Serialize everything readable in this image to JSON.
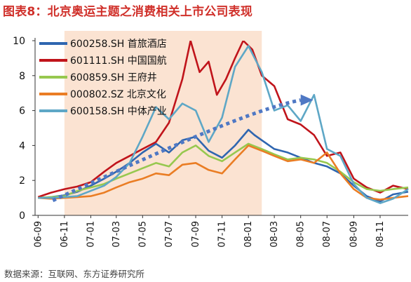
{
  "title": "图表8：北京奥运主题之消费相关上市公司表现",
  "source": "数据来源：互联网、东方证券研究所",
  "colors": {
    "title": "#d0302a",
    "highlight": "#fbe3d2",
    "trend_arrow": "#4f78c4"
  },
  "chart_data": {
    "type": "line",
    "xlabel": "",
    "ylabel": "",
    "ylim": [
      0,
      10
    ],
    "yticks": [
      0,
      2,
      4,
      6,
      8,
      10
    ],
    "x_range": [
      "2006-08-25",
      "2009-01-05"
    ],
    "xticks": [
      {
        "label": "06-09",
        "date": "2006-09-01"
      },
      {
        "label": "06-11",
        "date": "2006-11-01"
      },
      {
        "label": "07-01",
        "date": "2007-01-01"
      },
      {
        "label": "07-03",
        "date": "2007-03-01"
      },
      {
        "label": "07-05",
        "date": "2007-05-01"
      },
      {
        "label": "07-07",
        "date": "2007-07-01"
      },
      {
        "label": "07-09",
        "date": "2007-09-01"
      },
      {
        "label": "07-11",
        "date": "2007-11-01"
      },
      {
        "label": "08-01",
        "date": "2008-01-01"
      },
      {
        "label": "08-03",
        "date": "2008-03-01"
      },
      {
        "label": "08-05",
        "date": "2008-05-01"
      },
      {
        "label": "08-07",
        "date": "2008-07-01"
      },
      {
        "label": "08-09",
        "date": "2008-09-01"
      },
      {
        "label": "08-11",
        "date": "2008-11-01"
      }
    ],
    "highlight_range": [
      "2006-11-01",
      "2008-02-01"
    ],
    "trend_arrow": {
      "points": [
        [
          "2006-10-05",
          0.85
        ],
        [
          "2007-07-01",
          3.9
        ],
        [
          "2008-01-15",
          6.1
        ],
        [
          "2008-05-01",
          6.6
        ]
      ]
    },
    "legend_position": "top-left",
    "grid": false,
    "series": [
      {
        "name": "600258.SH 首旅酒店",
        "color": "#2f66b0",
        "points": [
          [
            "2006-09-01",
            1.0
          ],
          [
            "2006-10-01",
            1.05
          ],
          [
            "2006-11-01",
            1.15
          ],
          [
            "2006-12-01",
            1.35
          ],
          [
            "2007-01-01",
            1.7
          ],
          [
            "2007-02-01",
            2.1
          ],
          [
            "2007-03-01",
            2.5
          ],
          [
            "2007-04-01",
            3.0
          ],
          [
            "2007-05-01",
            3.6
          ],
          [
            "2007-06-01",
            4.1
          ],
          [
            "2007-07-01",
            3.6
          ],
          [
            "2007-08-01",
            4.3
          ],
          [
            "2007-09-01",
            4.5
          ],
          [
            "2007-10-01",
            3.7
          ],
          [
            "2007-11-01",
            3.3
          ],
          [
            "2007-12-01",
            4.0
          ],
          [
            "2008-01-01",
            4.9
          ],
          [
            "2008-01-15",
            4.6
          ],
          [
            "2008-02-01",
            4.3
          ],
          [
            "2008-03-01",
            3.8
          ],
          [
            "2008-04-01",
            3.6
          ],
          [
            "2008-05-01",
            3.3
          ],
          [
            "2008-06-01",
            3.0
          ],
          [
            "2008-07-01",
            2.8
          ],
          [
            "2008-08-01",
            2.4
          ],
          [
            "2008-09-01",
            1.7
          ],
          [
            "2008-10-01",
            1.1
          ],
          [
            "2008-11-01",
            0.8
          ],
          [
            "2008-12-01",
            1.2
          ],
          [
            "2009-01-05",
            1.35
          ]
        ]
      },
      {
        "name": "601111.SH 中国国航",
        "color": "#c0141b",
        "points": [
          [
            "2006-09-01",
            1.05
          ],
          [
            "2006-10-01",
            1.3
          ],
          [
            "2006-11-01",
            1.5
          ],
          [
            "2006-12-01",
            1.65
          ],
          [
            "2007-01-01",
            1.9
          ],
          [
            "2007-02-01",
            2.5
          ],
          [
            "2007-03-01",
            3.0
          ],
          [
            "2007-04-01",
            3.4
          ],
          [
            "2007-05-01",
            3.8
          ],
          [
            "2007-06-01",
            4.2
          ],
          [
            "2007-07-01",
            5.3
          ],
          [
            "2007-08-01",
            7.8
          ],
          [
            "2007-08-20",
            10.0
          ],
          [
            "2007-09-10",
            8.2
          ],
          [
            "2007-10-01",
            8.8
          ],
          [
            "2007-10-20",
            6.9
          ],
          [
            "2007-11-10",
            7.8
          ],
          [
            "2007-12-01",
            9.0
          ],
          [
            "2007-12-20",
            10.0
          ],
          [
            "2008-01-10",
            9.5
          ],
          [
            "2008-02-01",
            8.0
          ],
          [
            "2008-03-01",
            7.4
          ],
          [
            "2008-04-01",
            5.5
          ],
          [
            "2008-05-01",
            5.2
          ],
          [
            "2008-06-01",
            4.6
          ],
          [
            "2008-07-01",
            3.4
          ],
          [
            "2008-08-01",
            3.6
          ],
          [
            "2008-09-01",
            2.1
          ],
          [
            "2008-10-01",
            1.6
          ],
          [
            "2008-11-01",
            1.3
          ],
          [
            "2008-12-01",
            1.7
          ],
          [
            "2009-01-05",
            1.5
          ]
        ]
      },
      {
        "name": "600859.SH 王府井",
        "color": "#97c84f",
        "points": [
          [
            "2006-09-01",
            1.0
          ],
          [
            "2006-10-01",
            1.05
          ],
          [
            "2006-11-01",
            1.1
          ],
          [
            "2006-12-01",
            1.4
          ],
          [
            "2007-01-01",
            1.6
          ],
          [
            "2007-02-01",
            1.8
          ],
          [
            "2007-03-01",
            2.1
          ],
          [
            "2007-04-01",
            2.4
          ],
          [
            "2007-05-01",
            2.7
          ],
          [
            "2007-06-01",
            3.0
          ],
          [
            "2007-07-01",
            2.8
          ],
          [
            "2007-08-01",
            3.6
          ],
          [
            "2007-09-01",
            4.0
          ],
          [
            "2007-10-01",
            3.4
          ],
          [
            "2007-11-01",
            3.1
          ],
          [
            "2007-12-01",
            3.6
          ],
          [
            "2008-01-01",
            4.1
          ],
          [
            "2008-02-01",
            3.8
          ],
          [
            "2008-03-01",
            3.5
          ],
          [
            "2008-04-01",
            3.2
          ],
          [
            "2008-05-01",
            3.3
          ],
          [
            "2008-06-01",
            3.2
          ],
          [
            "2008-07-01",
            3.0
          ],
          [
            "2008-08-01",
            2.5
          ],
          [
            "2008-09-01",
            1.9
          ],
          [
            "2008-10-01",
            1.5
          ],
          [
            "2008-11-01",
            1.4
          ],
          [
            "2008-12-01",
            1.5
          ],
          [
            "2009-01-05",
            1.6
          ]
        ]
      },
      {
        "name": "000802.SZ 北京文化",
        "color": "#ea7d24",
        "points": [
          [
            "2006-09-01",
            1.0
          ],
          [
            "2006-10-01",
            0.95
          ],
          [
            "2006-11-01",
            1.0
          ],
          [
            "2006-12-01",
            1.05
          ],
          [
            "2007-01-01",
            1.1
          ],
          [
            "2007-02-01",
            1.3
          ],
          [
            "2007-03-01",
            1.6
          ],
          [
            "2007-04-01",
            1.9
          ],
          [
            "2007-05-01",
            2.1
          ],
          [
            "2007-06-01",
            2.4
          ],
          [
            "2007-07-01",
            2.3
          ],
          [
            "2007-08-01",
            2.9
          ],
          [
            "2007-09-01",
            3.0
          ],
          [
            "2007-10-01",
            2.6
          ],
          [
            "2007-11-01",
            2.4
          ],
          [
            "2007-12-01",
            3.2
          ],
          [
            "2008-01-01",
            4.0
          ],
          [
            "2008-02-01",
            3.7
          ],
          [
            "2008-03-01",
            3.4
          ],
          [
            "2008-04-01",
            3.1
          ],
          [
            "2008-05-01",
            3.2
          ],
          [
            "2008-06-01",
            3.0
          ],
          [
            "2008-07-01",
            3.6
          ],
          [
            "2008-08-01",
            2.4
          ],
          [
            "2008-09-01",
            1.5
          ],
          [
            "2008-10-01",
            1.0
          ],
          [
            "2008-11-01",
            0.9
          ],
          [
            "2008-12-01",
            1.0
          ],
          [
            "2009-01-05",
            1.1
          ]
        ]
      },
      {
        "name": "600158.SH 中体产业",
        "color": "#5ea7c6",
        "points": [
          [
            "2006-09-01",
            1.0
          ],
          [
            "2006-10-01",
            1.0
          ],
          [
            "2006-11-01",
            1.05
          ],
          [
            "2006-12-01",
            1.1
          ],
          [
            "2007-01-01",
            1.4
          ],
          [
            "2007-02-01",
            1.7
          ],
          [
            "2007-03-01",
            2.2
          ],
          [
            "2007-04-01",
            3.0
          ],
          [
            "2007-05-01",
            4.5
          ],
          [
            "2007-06-01",
            6.2
          ],
          [
            "2007-07-01",
            5.5
          ],
          [
            "2007-08-01",
            6.4
          ],
          [
            "2007-09-01",
            6.0
          ],
          [
            "2007-10-01",
            4.2
          ],
          [
            "2007-11-01",
            5.6
          ],
          [
            "2007-12-01",
            8.5
          ],
          [
            "2008-01-01",
            9.7
          ],
          [
            "2008-02-01",
            8.2
          ],
          [
            "2008-03-01",
            6.0
          ],
          [
            "2008-04-01",
            6.3
          ],
          [
            "2008-05-01",
            5.4
          ],
          [
            "2008-06-01",
            6.9
          ],
          [
            "2008-07-01",
            3.8
          ],
          [
            "2008-08-01",
            3.4
          ],
          [
            "2008-09-01",
            1.8
          ],
          [
            "2008-10-01",
            1.0
          ],
          [
            "2008-11-01",
            0.7
          ],
          [
            "2008-12-01",
            0.95
          ],
          [
            "2009-01-05",
            1.5
          ]
        ]
      }
    ]
  }
}
